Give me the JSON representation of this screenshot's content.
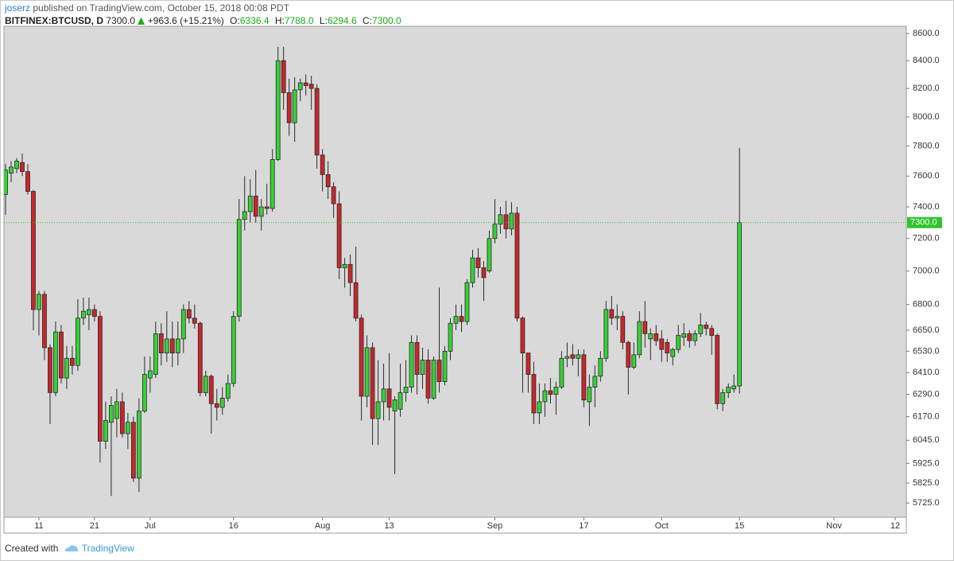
{
  "header": {
    "author": "joserz",
    "byline": "published on TradingView.com, October 15, 2018 00:08 PDT"
  },
  "legend": {
    "symbol": "BITFINEX:BTCUSD, D",
    "last": "7300.0",
    "change": "+963.6 (+15.21%)",
    "o_key": "O:",
    "o": "6336.4",
    "h_key": "H:",
    "h": "7788.0",
    "l_key": "L:",
    "l": "6294.6",
    "c_key": "C:",
    "c": "7300.0"
  },
  "footer": {
    "created": "Created with",
    "brand": "TradingView"
  },
  "chart_data": {
    "type": "candlestick",
    "log": true,
    "grid": false,
    "up_color": "#36d136",
    "down_color": "#c8262b",
    "border_color": "#2a2a2a",
    "background": "#d9d9d9",
    "x": [
      "2018-06-05",
      "2018-06-06",
      "2018-06-07",
      "2018-06-08",
      "2018-06-09",
      "2018-06-10",
      "2018-06-11",
      "2018-06-12",
      "2018-06-13",
      "2018-06-14",
      "2018-06-15",
      "2018-06-16",
      "2018-06-17",
      "2018-06-18",
      "2018-06-19",
      "2018-06-20",
      "2018-06-21",
      "2018-06-22",
      "2018-06-23",
      "2018-06-24",
      "2018-06-25",
      "2018-06-26",
      "2018-06-27",
      "2018-06-28",
      "2018-06-29",
      "2018-06-30",
      "2018-07-01",
      "2018-07-02",
      "2018-07-03",
      "2018-07-04",
      "2018-07-05",
      "2018-07-06",
      "2018-07-07",
      "2018-07-08",
      "2018-07-09",
      "2018-07-10",
      "2018-07-11",
      "2018-07-12",
      "2018-07-13",
      "2018-07-14",
      "2018-07-15",
      "2018-07-16",
      "2018-07-17",
      "2018-07-18",
      "2018-07-19",
      "2018-07-20",
      "2018-07-21",
      "2018-07-22",
      "2018-07-23",
      "2018-07-24",
      "2018-07-25",
      "2018-07-26",
      "2018-07-27",
      "2018-07-28",
      "2018-07-29",
      "2018-07-30",
      "2018-07-31",
      "2018-08-01",
      "2018-08-02",
      "2018-08-03",
      "2018-08-04",
      "2018-08-05",
      "2018-08-06",
      "2018-08-07",
      "2018-08-08",
      "2018-08-09",
      "2018-08-10",
      "2018-08-11",
      "2018-08-12",
      "2018-08-13",
      "2018-08-14",
      "2018-08-15",
      "2018-08-16",
      "2018-08-17",
      "2018-08-18",
      "2018-08-19",
      "2018-08-20",
      "2018-08-21",
      "2018-08-22",
      "2018-08-23",
      "2018-08-24",
      "2018-08-25",
      "2018-08-26",
      "2018-08-27",
      "2018-08-28",
      "2018-08-29",
      "2018-08-30",
      "2018-08-31",
      "2018-09-01",
      "2018-09-02",
      "2018-09-03",
      "2018-09-04",
      "2018-09-05",
      "2018-09-06",
      "2018-09-07",
      "2018-09-08",
      "2018-09-09",
      "2018-09-10",
      "2018-09-11",
      "2018-09-12",
      "2018-09-13",
      "2018-09-14",
      "2018-09-15",
      "2018-09-16",
      "2018-09-17",
      "2018-09-18",
      "2018-09-19",
      "2018-09-20",
      "2018-09-21",
      "2018-09-22",
      "2018-09-23",
      "2018-09-24",
      "2018-09-25",
      "2018-09-26",
      "2018-09-27",
      "2018-09-28",
      "2018-09-29",
      "2018-09-30",
      "2018-10-01",
      "2018-10-02",
      "2018-10-03",
      "2018-10-04",
      "2018-10-05",
      "2018-10-06",
      "2018-10-07",
      "2018-10-08",
      "2018-10-09",
      "2018-10-10",
      "2018-10-11",
      "2018-10-12",
      "2018-10-13",
      "2018-10-14",
      "2018-10-15"
    ],
    "open": [
      7480,
      7620,
      7650,
      7690,
      7630,
      7500,
      6770,
      6860,
      6550,
      6300,
      6640,
      6380,
      6490,
      6450,
      6720,
      6740,
      6770,
      6730,
      6040,
      6140,
      6160,
      6250,
      6080,
      6140,
      5850,
      6200,
      6380,
      6400,
      6630,
      6520,
      6600,
      6520,
      6600,
      6770,
      6720,
      6690,
      6300,
      6390,
      6240,
      6220,
      6270,
      6350,
      6730,
      7320,
      7370,
      7470,
      7340,
      7400,
      7390,
      7710,
      8400,
      8170,
      7960,
      8190,
      8240,
      8230,
      8200,
      7740,
      7610,
      7530,
      7420,
      7020,
      7040,
      6930,
      6720,
      6280,
      6550,
      6160,
      6250,
      6320,
      6200,
      6210,
      6300,
      6330,
      6580,
      6400,
      6480,
      6270,
      6480,
      6360,
      6530,
      6690,
      6730,
      6700,
      6930,
      7080,
      7020,
      7000,
      7200,
      7290,
      7350,
      7260,
      7360,
      6720,
      6520,
      6400,
      6190,
      6250,
      6310,
      6290,
      6330,
      6490,
      6510,
      6490,
      6510,
      6250,
      6330,
      6390,
      6490,
      6770,
      6720,
      6730,
      6580,
      6440,
      6510,
      6700,
      6600,
      6630,
      6600,
      6580,
      6500,
      6540,
      6610,
      6630,
      6590,
      6630,
      6680,
      6660,
      6620,
      6240,
      6300,
      6320,
      6336.4
    ],
    "high": [
      7680,
      7700,
      7720,
      7750,
      7680,
      7510,
      6880,
      6880,
      6570,
      6700,
      6680,
      6560,
      6560,
      6830,
      6840,
      6840,
      6800,
      6760,
      6250,
      6280,
      6320,
      6300,
      6190,
      6170,
      6270,
      6500,
      6500,
      6700,
      6690,
      6760,
      6700,
      6700,
      6800,
      6820,
      6800,
      6700,
      6420,
      6400,
      6320,
      6330,
      6400,
      6760,
      7450,
      7600,
      7580,
      7640,
      7450,
      7550,
      7780,
      8500,
      8500,
      8270,
      8280,
      8270,
      8300,
      8290,
      8230,
      7780,
      7700,
      7560,
      7500,
      7080,
      7100,
      7150,
      6740,
      6620,
      6580,
      6480,
      6460,
      6520,
      6280,
      6460,
      6480,
      6620,
      6620,
      6550,
      6540,
      6500,
      6900,
      6560,
      6720,
      6800,
      6800,
      6950,
      7130,
      7140,
      7060,
      7250,
      7450,
      7400,
      7440,
      7430,
      7400,
      6730,
      6520,
      6470,
      6350,
      6350,
      6380,
      6360,
      6530,
      6580,
      6570,
      6540,
      6540,
      6400,
      6450,
      6530,
      6820,
      6850,
      6800,
      6760,
      6590,
      6580,
      6760,
      6820,
      6660,
      6680,
      6650,
      6600,
      6550,
      6680,
      6690,
      6650,
      6650,
      6750,
      6700,
      6680,
      6630,
      6320,
      6350,
      6400,
      7788
    ],
    "low": [
      7350,
      7560,
      7620,
      7600,
      7480,
      6650,
      6620,
      6480,
      6130,
      6280,
      6350,
      6320,
      6400,
      6420,
      6680,
      6650,
      6700,
      5930,
      6000,
      5760,
      6060,
      6060,
      6000,
      5830,
      5780,
      6190,
      6300,
      6380,
      6450,
      6470,
      6440,
      6450,
      6520,
      6690,
      6660,
      6280,
      6280,
      6080,
      6150,
      6180,
      6250,
      6330,
      6700,
      7250,
      7300,
      7300,
      7250,
      7350,
      7370,
      7700,
      8050,
      7870,
      7830,
      8110,
      8150,
      8050,
      7650,
      7500,
      7450,
      7330,
      6950,
      6900,
      6850,
      6700,
      6150,
      6220,
      6020,
      6020,
      6150,
      6150,
      5870,
      6170,
      6250,
      6300,
      6290,
      6320,
      6240,
      6260,
      6300,
      6340,
      6480,
      6650,
      6640,
      6680,
      6900,
      6960,
      6820,
      6990,
      7170,
      7230,
      7200,
      7220,
      6700,
      6300,
      6300,
      6130,
      6130,
      6170,
      6240,
      6180,
      6320,
      6440,
      6450,
      6390,
      6220,
      6120,
      6220,
      6360,
      6470,
      6680,
      6650,
      6540,
      6290,
      6430,
      6490,
      6550,
      6480,
      6560,
      6470,
      6470,
      6450,
      6520,
      6560,
      6550,
      6560,
      6610,
      6620,
      6510,
      6210,
      6200,
      6270,
      6300,
      6294.6
    ],
    "close": [
      7640,
      7660,
      7700,
      7630,
      7500,
      6770,
      6860,
      6550,
      6300,
      6640,
      6380,
      6490,
      6450,
      6720,
      6760,
      6770,
      6730,
      6040,
      6150,
      6230,
      6250,
      6080,
      6140,
      5850,
      6200,
      6400,
      6420,
      6630,
      6520,
      6600,
      6520,
      6600,
      6770,
      6720,
      6690,
      6300,
      6390,
      6240,
      6220,
      6270,
      6350,
      6730,
      7320,
      7370,
      7470,
      7340,
      7400,
      7390,
      7710,
      8400,
      8170,
      7960,
      8190,
      8240,
      8220,
      8200,
      7740,
      7610,
      7530,
      7420,
      7020,
      7040,
      6930,
      6720,
      6280,
      6550,
      6160,
      6250,
      6320,
      6220,
      6260,
      6300,
      6330,
      6580,
      6400,
      6480,
      6270,
      6480,
      6360,
      6530,
      6690,
      6730,
      6700,
      6930,
      7080,
      7020,
      6960,
      7200,
      7290,
      7350,
      7260,
      7360,
      6720,
      6520,
      6400,
      6190,
      6250,
      6310,
      6290,
      6330,
      6490,
      6500,
      6490,
      6510,
      6260,
      6330,
      6390,
      6490,
      6770,
      6720,
      6730,
      6580,
      6440,
      6510,
      6700,
      6630,
      6630,
      6590,
      6540,
      6520,
      6540,
      6620,
      6630,
      6590,
      6630,
      6680,
      6660,
      6620,
      6240,
      6300,
      6330,
      6336.4,
      7300
    ],
    "xlim": [
      "2018-06-05",
      "2018-11-14"
    ],
    "xticks": [
      {
        "value": "2018-06-11",
        "label": "11"
      },
      {
        "value": "2018-06-21",
        "label": "21"
      },
      {
        "value": "2018-07-01",
        "label": "Jul"
      },
      {
        "value": "2018-07-16",
        "label": "16"
      },
      {
        "value": "2018-08-01",
        "label": "Aug"
      },
      {
        "value": "2018-08-13",
        "label": "13"
      },
      {
        "value": "2018-09-01",
        "label": "Sep"
      },
      {
        "value": "2018-09-17",
        "label": "17"
      },
      {
        "value": "2018-10-01",
        "label": "Oct"
      },
      {
        "value": "2018-10-15",
        "label": "15"
      },
      {
        "value": "2018-11-01",
        "label": "Nov"
      },
      {
        "value": "2018-11-12",
        "label": "12"
      }
    ],
    "ylim": [
      5655,
      8654
    ],
    "yticks": [
      {
        "value": 8600,
        "label": "8600.0"
      },
      {
        "value": 8400,
        "label": "8400.0"
      },
      {
        "value": 8200,
        "label": "8200.0"
      },
      {
        "value": 8000,
        "label": "8000.0"
      },
      {
        "value": 7800,
        "label": "7800.0"
      },
      {
        "value": 7600,
        "label": "7600.0"
      },
      {
        "value": 7400,
        "label": "7400.0"
      },
      {
        "value": 7200,
        "label": "7200.0"
      },
      {
        "value": 7000,
        "label": "7000.0"
      },
      {
        "value": 6800,
        "label": "6800.0"
      },
      {
        "value": 6650,
        "label": "6650.0"
      },
      {
        "value": 6530,
        "label": "6530.0"
      },
      {
        "value": 6410,
        "label": "6410.0"
      },
      {
        "value": 6290,
        "label": "6290.0"
      },
      {
        "value": 6170,
        "label": "6170.0"
      },
      {
        "value": 6045,
        "label": "6045.0"
      },
      {
        "value": 5925,
        "label": "5925.0"
      },
      {
        "value": 5825,
        "label": "5825.0"
      },
      {
        "value": 5725,
        "label": "5725.0"
      }
    ],
    "price_line": {
      "value": 7300,
      "label": "7300.0",
      "color": "#2fc42f"
    }
  }
}
